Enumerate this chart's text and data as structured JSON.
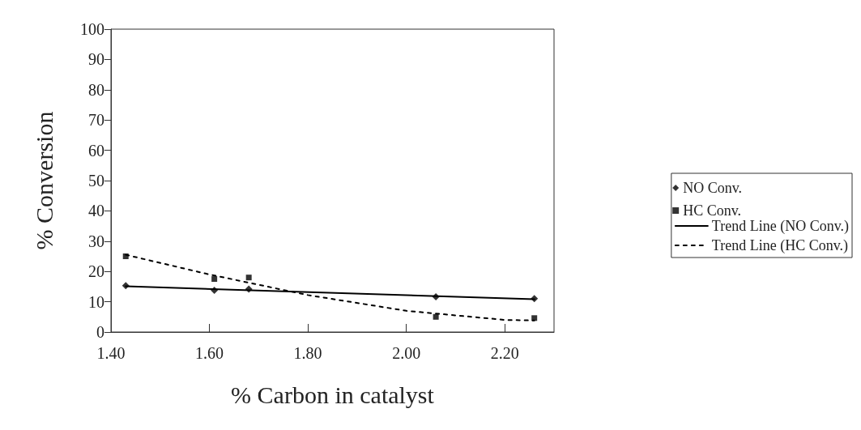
{
  "chart_data": {
    "type": "scatter",
    "xlabel": "% Carbon in catalyst",
    "ylabel": "% Conversion",
    "xlim": [
      1.4,
      2.3
    ],
    "xticks": [
      {
        "value": 1.4,
        "label": "1.40"
      },
      {
        "value": 1.6,
        "label": "1.60"
      },
      {
        "value": 1.8,
        "label": "1.80"
      },
      {
        "value": 2.0,
        "label": "2.00"
      },
      {
        "value": 2.2,
        "label": "2.20"
      }
    ],
    "ylim": [
      0,
      100
    ],
    "yticks": [
      0,
      10,
      20,
      30,
      40,
      50,
      60,
      70,
      80,
      90,
      100
    ],
    "grid": false,
    "legend": "right",
    "series": [
      {
        "name": "NO Conv.",
        "marker": "diamond",
        "color": "#000000",
        "x": [
          1.43,
          1.61,
          1.68,
          2.06,
          2.26
        ],
        "values": [
          15.3,
          13.8,
          14.2,
          11.6,
          11
        ]
      },
      {
        "name": "HC Conv.",
        "marker": "square",
        "color": "#000000",
        "x": [
          1.43,
          1.61,
          1.68,
          2.06,
          2.26
        ],
        "values": [
          25,
          17.5,
          18,
          5,
          4.6
        ]
      },
      {
        "name": "Trend Line (NO Conv.)",
        "type": "line",
        "line_style": "solid",
        "color": "#000000",
        "x": [
          1.43,
          2.26
        ],
        "values": [
          15.1,
          10.8
        ]
      },
      {
        "name": "Trend Line (HC Conv.)",
        "type": "line",
        "line_style": "dashed",
        "color": "#000000",
        "x": [
          1.43,
          1.6,
          1.8,
          2.0,
          2.2,
          2.26
        ],
        "values": [
          25.5,
          19,
          12.2,
          7,
          4,
          3.8
        ]
      }
    ]
  }
}
